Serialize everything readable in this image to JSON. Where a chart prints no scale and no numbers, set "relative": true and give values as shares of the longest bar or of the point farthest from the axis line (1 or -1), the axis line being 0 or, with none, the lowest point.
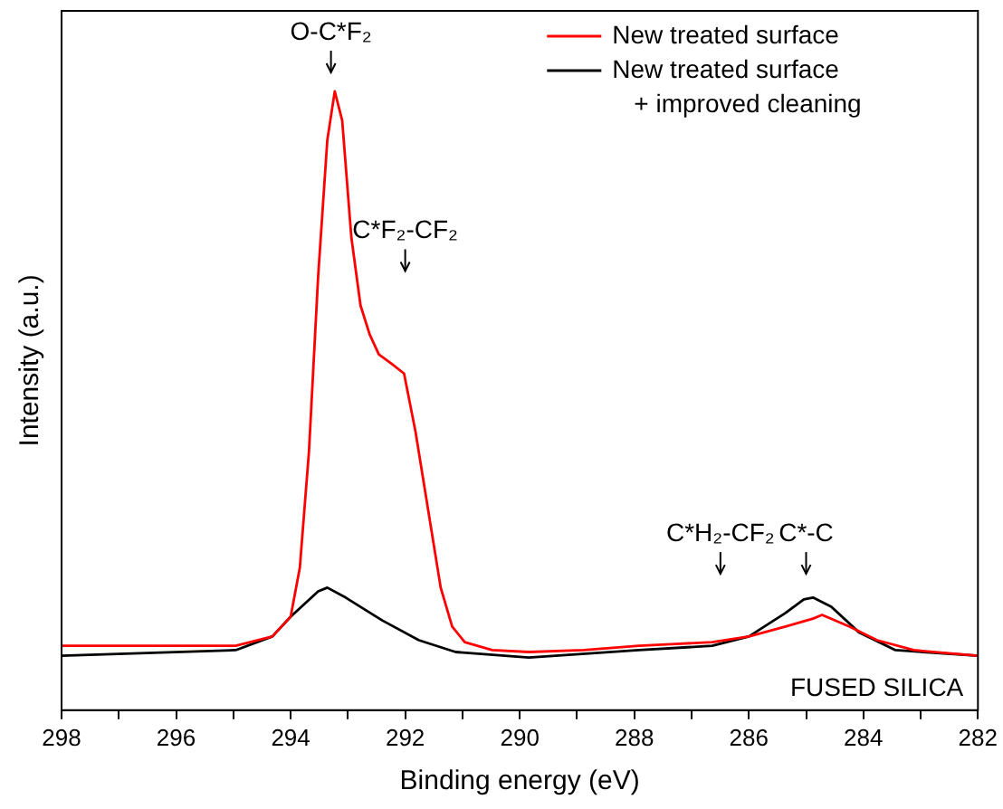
{
  "chart_data": {
    "type": "line",
    "xlabel": "Binding energy (eV)",
    "ylabel": "Intensity (a.u.)",
    "relative": true,
    "tick_labels": "x",
    "legend": "top right",
    "grid": false,
    "marker": "none",
    "line_style": "solid",
    "xlim": [
      298,
      282
    ],
    "xticks": [
      298,
      {
        "value": 297,
        "label": null
      },
      296,
      {
        "value": 295,
        "label": null
      },
      294,
      {
        "value": 293,
        "label": null
      },
      292,
      {
        "value": 291,
        "label": null
      },
      290,
      {
        "value": 289,
        "label": null
      },
      288,
      {
        "value": 287,
        "label": null
      },
      286,
      {
        "value": 285,
        "label": null
      },
      284,
      {
        "value": 283,
        "label": null
      },
      282
    ],
    "series": [
      {
        "name": "New treated surface",
        "color": "#ff0000",
        "x": [
          298.0,
          296.24,
          294.96,
          294.32,
          294.0,
          293.84,
          293.68,
          293.52,
          293.36,
          293.23,
          293.1,
          292.94,
          292.78,
          292.62,
          292.46,
          292.24,
          292.02,
          291.82,
          291.6,
          291.38,
          291.18,
          290.96,
          290.48,
          289.84,
          288.88,
          287.92,
          287.28,
          286.64,
          286.0,
          285.36,
          284.88,
          284.72,
          284.24,
          283.76,
          283.12,
          282.0
        ],
        "values": [
          0.104,
          0.104,
          0.104,
          0.119,
          0.151,
          0.23,
          0.418,
          0.701,
          0.921,
          1.0,
          0.953,
          0.764,
          0.654,
          0.607,
          0.575,
          0.56,
          0.544,
          0.45,
          0.324,
          0.198,
          0.135,
          0.11,
          0.097,
          0.094,
          0.097,
          0.104,
          0.107,
          0.11,
          0.119,
          0.135,
          0.148,
          0.154,
          0.135,
          0.113,
          0.097,
          0.088
        ]
      },
      {
        "name": "New treated surface\n+ improved cleaning",
        "color": "#000000",
        "x": [
          298.0,
          294.96,
          294.32,
          294.0,
          293.52,
          293.36,
          293.04,
          292.4,
          291.76,
          291.12,
          289.84,
          287.92,
          286.64,
          286.0,
          285.36,
          285.04,
          284.88,
          284.56,
          284.08,
          283.44,
          282.0
        ],
        "values": [
          0.088,
          0.097,
          0.119,
          0.151,
          0.192,
          0.198,
          0.182,
          0.145,
          0.113,
          0.094,
          0.085,
          0.097,
          0.104,
          0.119,
          0.157,
          0.179,
          0.182,
          0.167,
          0.126,
          0.097,
          0.088
        ]
      }
    ],
    "annotations": [
      "O-C*F₂",
      "C*F₂-CF₂",
      "C*H₂-CF₂",
      "C*-C",
      "FUSED SILICA"
    ]
  }
}
